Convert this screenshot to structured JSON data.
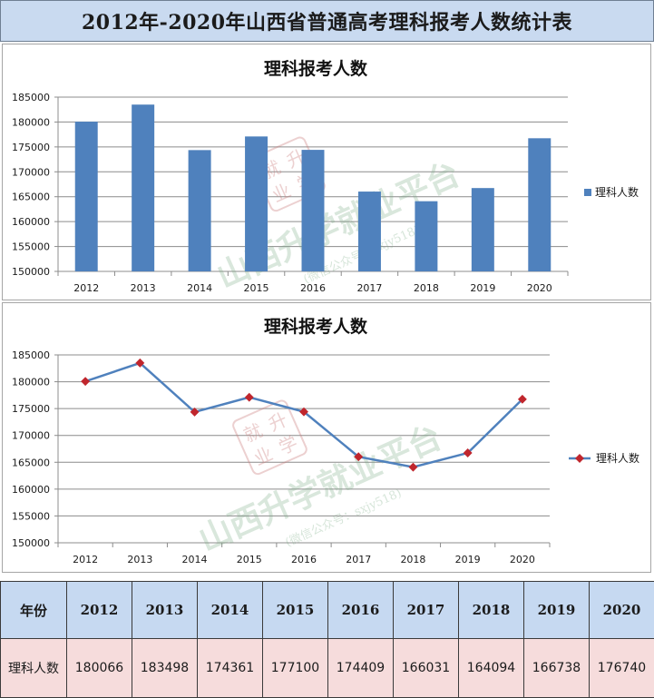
{
  "page_title": "2012年-2020年山西省普通高考理科报考人数统计表",
  "chart_data": [
    {
      "type": "bar",
      "title": "理科报考人数",
      "categories": [
        "2012",
        "2013",
        "2014",
        "2015",
        "2016",
        "2017",
        "2018",
        "2019",
        "2020"
      ],
      "series": [
        {
          "name": "理科人数",
          "values": [
            180066,
            183498,
            174361,
            177100,
            174409,
            166031,
            164094,
            166738,
            176740
          ]
        }
      ],
      "ylim": [
        150000,
        185000
      ],
      "yticks": [
        150000,
        155000,
        160000,
        165000,
        170000,
        175000,
        180000,
        185000
      ],
      "grid": true,
      "legend": "right",
      "color": "#4f81bd"
    },
    {
      "type": "line",
      "title": "理科报考人数",
      "categories": [
        "2012",
        "2013",
        "2014",
        "2015",
        "2016",
        "2017",
        "2018",
        "2019",
        "2020"
      ],
      "series": [
        {
          "name": "理科人数",
          "values": [
            180066,
            183498,
            174361,
            177100,
            174409,
            166031,
            164094,
            166738,
            176740
          ]
        }
      ],
      "ylim": [
        150000,
        185000
      ],
      "yticks": [
        150000,
        155000,
        160000,
        165000,
        170000,
        175000,
        180000,
        185000
      ],
      "grid": true,
      "legend": "right",
      "line_color": "#4f81bd",
      "marker_color": "#c0262d"
    }
  ],
  "watermark": {
    "text": "山西升学就业平台",
    "sub": "(微信公众号：sxjy518)",
    "stamp": "就升业学"
  },
  "table": {
    "header_label": "年份",
    "row_label": "理科人数",
    "years": [
      "2012",
      "2013",
      "2014",
      "2015",
      "2016",
      "2017",
      "2018",
      "2019",
      "2020"
    ],
    "values": [
      "180066",
      "183498",
      "174361",
      "177100",
      "174409",
      "166031",
      "164094",
      "166738",
      "176740"
    ]
  }
}
